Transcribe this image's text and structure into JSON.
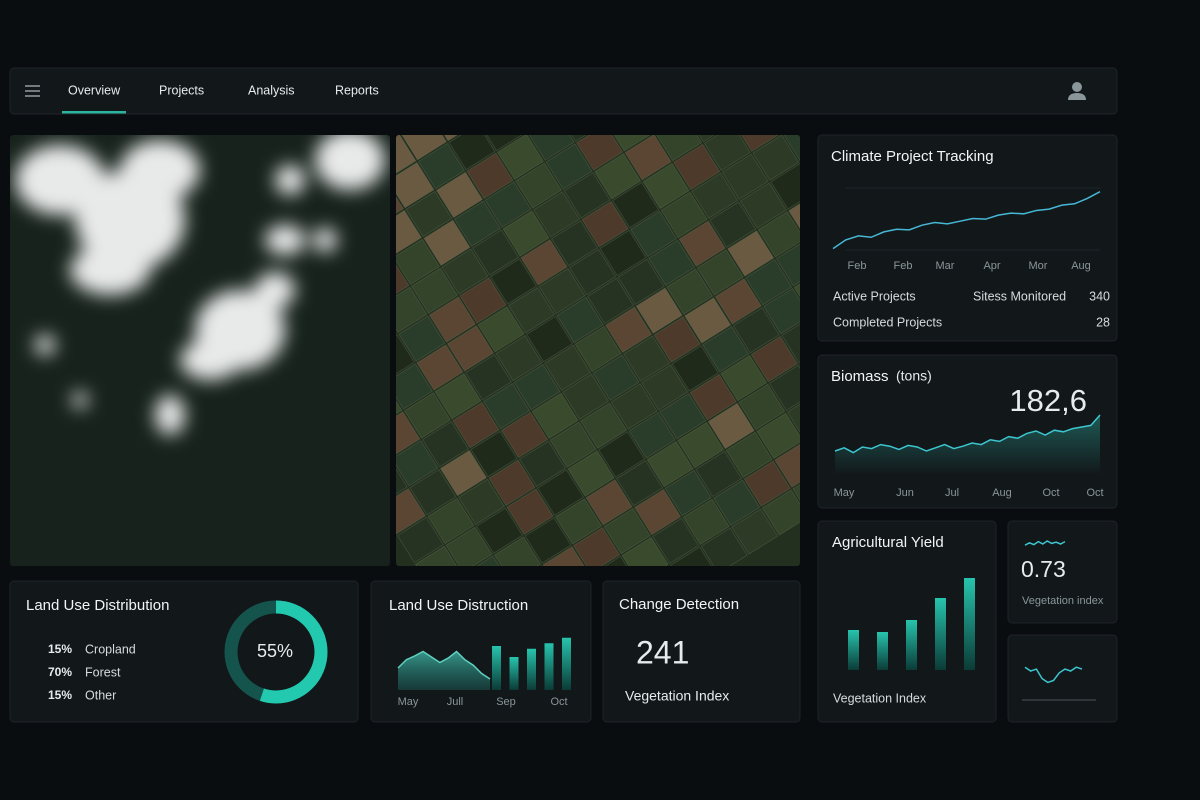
{
  "nav": {
    "items": [
      "Overview",
      "Projects",
      "Analysis",
      "Reports"
    ]
  },
  "climate": {
    "title": "Climate Project Tracking",
    "months": [
      "Feb",
      "Feb",
      "Mar",
      "Apr",
      "Mor",
      "Aug"
    ],
    "values": [
      5,
      18,
      24,
      22,
      30,
      34,
      33,
      40,
      44,
      42,
      46,
      50,
      49,
      55,
      58,
      57,
      62,
      64,
      70,
      72,
      80,
      90
    ],
    "ylim": [
      0,
      100
    ],
    "stats": [
      {
        "label": "Active Projects"
      },
      {
        "label": "Sitess Monitored",
        "value": 340
      },
      {
        "label": "Completed Projects",
        "value": 28
      }
    ]
  },
  "biomass": {
    "title": "Biomass",
    "unit": "(tons)",
    "value": "182,6",
    "months": [
      "May",
      "Jun",
      "Jul",
      "Aug",
      "Oct",
      "Oct"
    ],
    "values": [
      30,
      34,
      28,
      35,
      33,
      38,
      36,
      32,
      37,
      35,
      30,
      34,
      38,
      33,
      36,
      40,
      38,
      44,
      42,
      48,
      46,
      52,
      55,
      50,
      56,
      54,
      58,
      60,
      62,
      75
    ],
    "ylim": [
      0,
      100
    ]
  },
  "yield": {
    "title": "Agricultural Yield",
    "caption": "Vegetation Index",
    "values": [
      40,
      38,
      50,
      72,
      92
    ],
    "ylim": [
      0,
      100
    ]
  },
  "index_card": {
    "value": 0.73,
    "label": "Vegetation index",
    "spark": [
      40,
      60,
      45,
      70,
      50,
      75,
      55,
      65,
      50,
      70
    ]
  },
  "mini_card": {
    "spark": [
      60,
      50,
      55,
      30,
      20,
      25,
      45,
      55,
      50,
      60,
      55
    ],
    "ylim": [
      0,
      100
    ]
  },
  "land_use": {
    "title": "Land Use Distribution",
    "items": [
      {
        "pct": "15%",
        "label": "Cropland"
      },
      {
        "pct": "70%",
        "label": "Forest"
      },
      {
        "pct": "15%",
        "label": "Other"
      }
    ],
    "donut": {
      "value": 55,
      "label": "55%"
    }
  },
  "distruction": {
    "title": "Land Use Distruction",
    "months": [
      "May",
      "Jull",
      "Sep",
      "Oct"
    ],
    "area": [
      40,
      55,
      62,
      70,
      60,
      50,
      58,
      70,
      55,
      45,
      30,
      20
    ],
    "bars": [
      80,
      60,
      75,
      85,
      95
    ],
    "ylim": [
      0,
      100
    ]
  },
  "change": {
    "title": "Change Detection",
    "value": 241,
    "label": "Vegetation Index"
  }
}
